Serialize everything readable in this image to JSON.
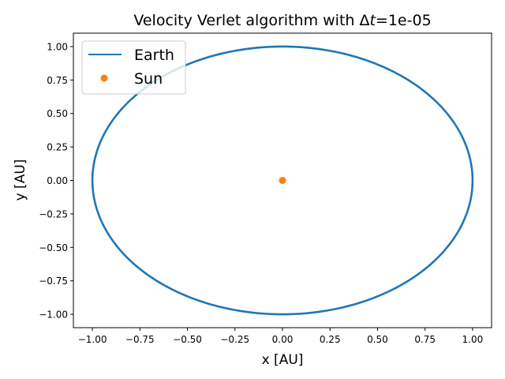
{
  "chart_data": {
    "type": "line",
    "title_prefix": "Velocity Verlet algorithm with Δ",
    "title_var": "t",
    "title_suffix": "=1e-05",
    "xlabel": "x [AU]",
    "ylabel": "y [AU]",
    "xlim": [
      -1.1,
      1.1
    ],
    "ylim": [
      -1.1,
      1.1
    ],
    "xticks": [
      -1.0,
      -0.75,
      -0.5,
      -0.25,
      0.0,
      0.25,
      0.5,
      0.75,
      1.0
    ],
    "xtick_labels": [
      "−1.00",
      "−0.75",
      "−0.50",
      "−0.25",
      "0.00",
      "0.25",
      "0.50",
      "0.75",
      "1.00"
    ],
    "yticks": [
      -1.0,
      -0.75,
      -0.5,
      -0.25,
      0.0,
      0.25,
      0.5,
      0.75,
      1.0
    ],
    "ytick_labels": [
      "−1.00",
      "−0.75",
      "−0.50",
      "−0.25",
      "0.00",
      "0.25",
      "0.50",
      "0.75",
      "1.00"
    ],
    "grid": false,
    "legend_position": "top-left",
    "series": [
      {
        "name": "Earth",
        "type": "line",
        "color": "#1f77b4",
        "shape": "circle",
        "center": [
          0.0,
          0.0
        ],
        "radius": 1.0
      },
      {
        "name": "Sun",
        "type": "scatter",
        "color": "#ff7f0e",
        "points": [
          [
            0.0,
            0.0
          ]
        ]
      }
    ]
  }
}
